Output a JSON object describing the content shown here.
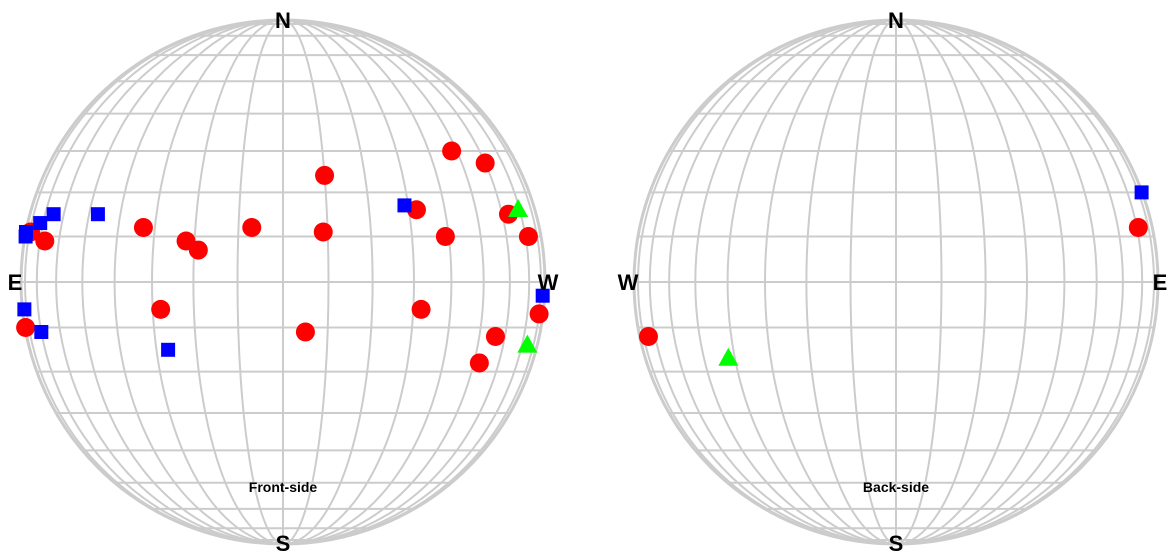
{
  "colors": {
    "grid": "#cccccc",
    "circle": "#ff0000",
    "square": "#0000ff",
    "triangle": "#00ff00"
  },
  "panels": [
    {
      "side_label": "Front-side",
      "directions": {
        "top": "N",
        "bottom": "S",
        "left": "E",
        "right": "W"
      },
      "markers": [
        {
          "shape": "circle",
          "lon": -79,
          "lat": 11
        },
        {
          "shape": "circle",
          "lon": -67,
          "lat": 9
        },
        {
          "shape": "circle",
          "lon": -33,
          "lat": 12
        },
        {
          "shape": "circle",
          "lon": -22,
          "lat": 9
        },
        {
          "shape": "circle",
          "lon": -19,
          "lat": 7
        },
        {
          "shape": "circle",
          "lon": -7,
          "lat": 12
        },
        {
          "shape": "circle",
          "lon": 10,
          "lat": 24
        },
        {
          "shape": "circle",
          "lon": 9,
          "lat": 11
        },
        {
          "shape": "circle",
          "lon": 32,
          "lat": 16
        },
        {
          "shape": "circle",
          "lon": 39,
          "lat": 10
        },
        {
          "shape": "circle",
          "lon": 48,
          "lat": 30
        },
        {
          "shape": "circle",
          "lon": 60,
          "lat": 27
        },
        {
          "shape": "circle",
          "lon": 63,
          "lat": 15
        },
        {
          "shape": "circle",
          "lon": 72,
          "lat": 10
        },
        {
          "shape": "circle",
          "lon": -86,
          "lat": -10
        },
        {
          "shape": "circle",
          "lon": -28,
          "lat": -6
        },
        {
          "shape": "circle",
          "lon": 5,
          "lat": -11
        },
        {
          "shape": "circle",
          "lon": 32,
          "lat": -6
        },
        {
          "shape": "circle",
          "lon": 56,
          "lat": -12
        },
        {
          "shape": "circle",
          "lon": 52,
          "lat": -18
        },
        {
          "shape": "circle",
          "lon": 80,
          "lat": -7
        },
        {
          "shape": "square",
          "lon": -88,
          "lat": 11
        },
        {
          "shape": "square",
          "lon": -86,
          "lat": 10
        },
        {
          "shape": "square",
          "lon": -72,
          "lat": 13
        },
        {
          "shape": "square",
          "lon": -65,
          "lat": 15
        },
        {
          "shape": "square",
          "lon": -47,
          "lat": 15
        },
        {
          "shape": "square",
          "lon": 29,
          "lat": 17
        },
        {
          "shape": "square",
          "lon": 83,
          "lat": -3
        },
        {
          "shape": "square",
          "lon": -83,
          "lat": -6
        },
        {
          "shape": "square",
          "lon": -70,
          "lat": -11
        },
        {
          "shape": "square",
          "lon": -27,
          "lat": -15
        },
        {
          "shape": "triangle",
          "lon": 69,
          "lat": 16
        },
        {
          "shape": "triangle",
          "lon": 74,
          "lat": -14
        }
      ]
    },
    {
      "side_label": "Back-side",
      "directions": {
        "top": "N",
        "bottom": "S",
        "left": "W",
        "right": "E"
      },
      "markers": [
        {
          "shape": "circle",
          "lon": 71,
          "lat": 12
        },
        {
          "shape": "square",
          "lon": 86,
          "lat": 20
        },
        {
          "shape": "circle",
          "lon": -75,
          "lat": -12
        },
        {
          "shape": "triangle",
          "lon": -42,
          "lat": -17
        }
      ]
    }
  ]
}
